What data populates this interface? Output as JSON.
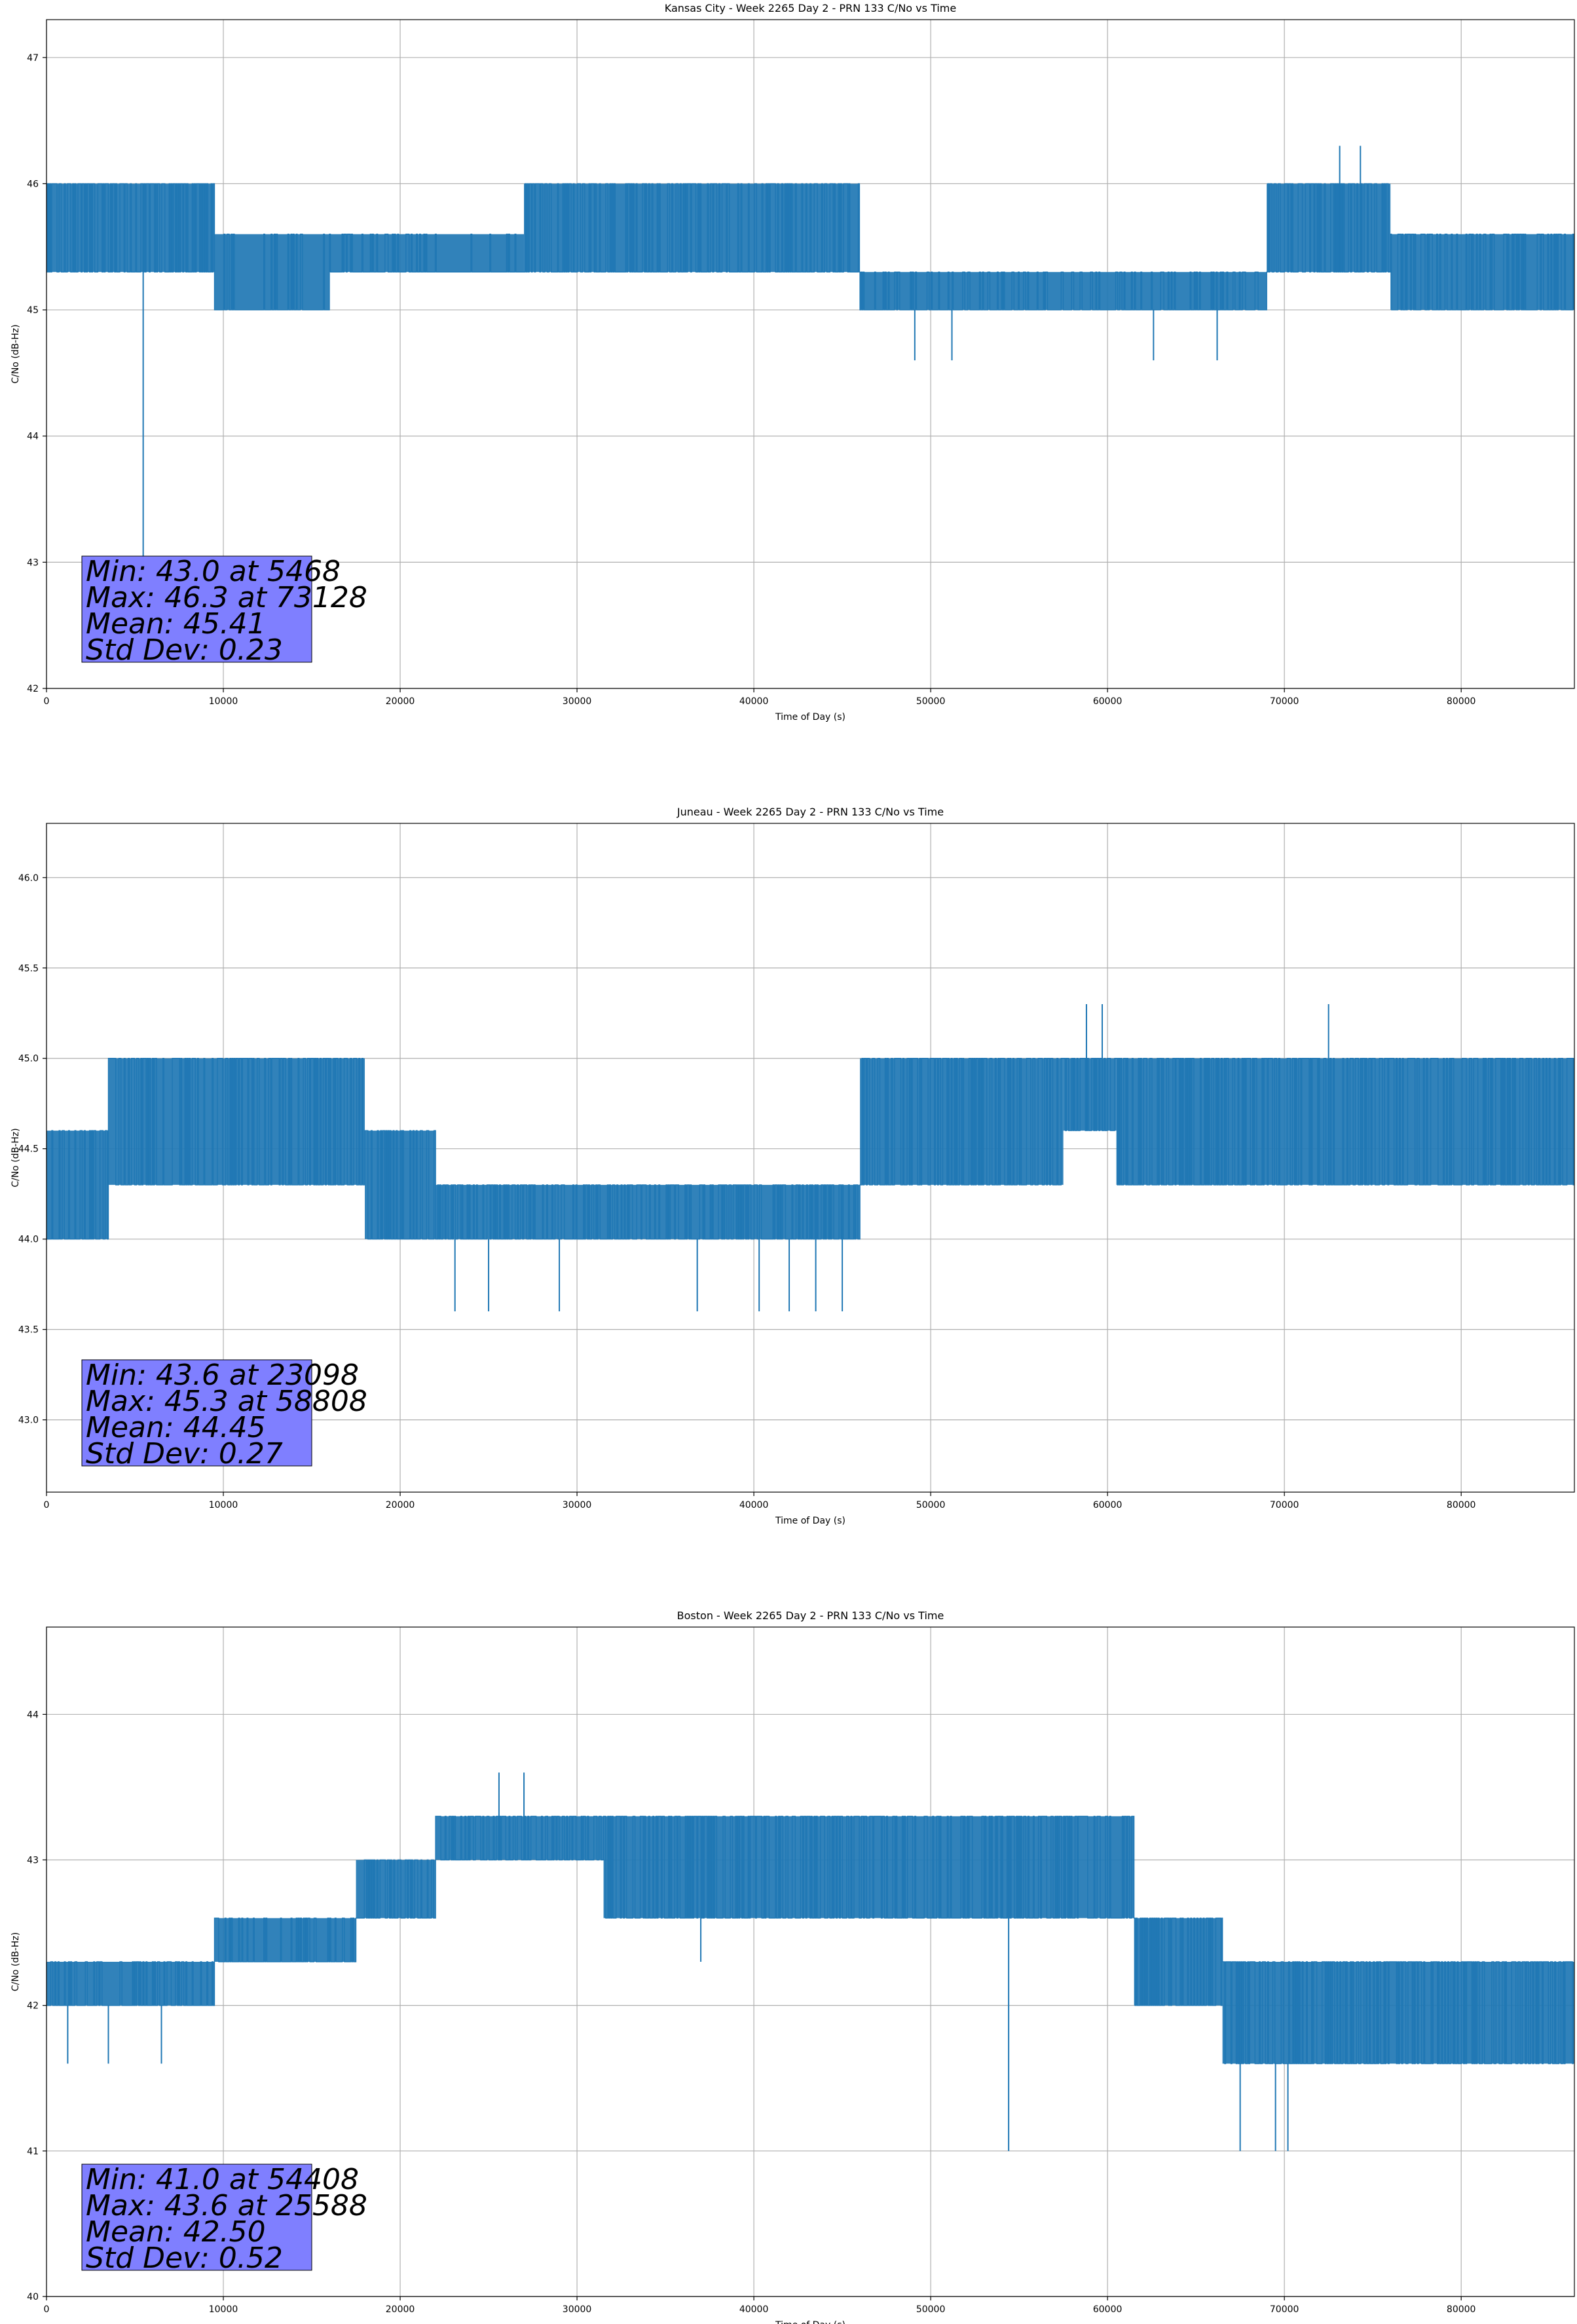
{
  "chart_data": [
    {
      "type": "line",
      "title": "Kansas City - Week 2265 Day 2 - PRN 133 C/No vs Time",
      "xlabel": "Time of Day (s)",
      "ylabel": "C/No (dB-Hz)",
      "xlim": [
        0,
        86400
      ],
      "ylim": [
        42,
        47.3
      ],
      "xticks": [
        0,
        10000,
        20000,
        30000,
        40000,
        50000,
        60000,
        70000,
        80000
      ],
      "yticks": [
        42,
        43,
        44,
        45,
        46,
        47
      ],
      "ytick_labels": [
        "42",
        "43",
        "44",
        "45",
        "46",
        "47"
      ],
      "grid": true,
      "color": "#1f77b4",
      "stats": [
        "Min: 43.0 at 5468",
        "Max: 46.3 at 73128",
        "Mean: 45.41",
        "Std Dev: 0.23"
      ],
      "segments": [
        {
          "x0": 0,
          "x1": 9500,
          "low": 45.3,
          "high": 46.0,
          "dense": 0.55
        },
        {
          "x0": 9500,
          "x1": 16000,
          "low": 45.0,
          "high": 45.6,
          "dense": 0.15
        },
        {
          "x0": 16000,
          "x1": 27000,
          "low": 45.3,
          "high": 45.6,
          "dense": 0.15
        },
        {
          "x0": 27000,
          "x1": 46000,
          "low": 45.3,
          "high": 46.0,
          "dense": 0.4
        },
        {
          "x0": 46000,
          "x1": 69000,
          "low": 45.0,
          "high": 45.3,
          "dense": 0.2
        },
        {
          "x0": 69000,
          "x1": 76000,
          "low": 45.3,
          "high": 46.0,
          "dense": 0.45
        },
        {
          "x0": 76000,
          "x1": 86400,
          "low": 45.0,
          "high": 45.6,
          "dense": 0.35
        }
      ],
      "spikes": [
        {
          "x": 5468,
          "y": 43.0
        },
        {
          "x": 49100,
          "y": 44.6
        },
        {
          "x": 51200,
          "y": 44.6
        },
        {
          "x": 62600,
          "y": 44.6
        },
        {
          "x": 66200,
          "y": 44.6
        },
        {
          "x": 73128,
          "y": 46.3
        },
        {
          "x": 74300,
          "y": 46.3
        }
      ]
    },
    {
      "type": "line",
      "title": "Juneau - Week 2265 Day 2 - PRN 133 C/No vs Time",
      "xlabel": "Time of Day (s)",
      "ylabel": "C/No (dB-Hz)",
      "xlim": [
        0,
        86400
      ],
      "ylim": [
        42.6,
        46.3
      ],
      "xticks": [
        0,
        10000,
        20000,
        30000,
        40000,
        50000,
        60000,
        70000,
        80000
      ],
      "yticks": [
        43.0,
        43.5,
        44.0,
        44.5,
        45.0,
        45.5,
        46.0
      ],
      "ytick_labels": [
        "43.0",
        "43.5",
        "44.0",
        "44.5",
        "45.0",
        "45.5",
        "46.0"
      ],
      "grid": true,
      "color": "#1f77b4",
      "stats": [
        "Min: 43.6 at 23098",
        "Max: 45.3 at 58808",
        "Mean: 44.45",
        "Std Dev: 0.27"
      ],
      "segments": [
        {
          "x0": 0,
          "x1": 3500,
          "low": 44.0,
          "high": 44.6,
          "dense": 0.3
        },
        {
          "x0": 3500,
          "x1": 18000,
          "low": 44.3,
          "high": 45.0,
          "dense": 0.5
        },
        {
          "x0": 18000,
          "x1": 22000,
          "low": 44.0,
          "high": 44.6,
          "dense": 0.4
        },
        {
          "x0": 22000,
          "x1": 46000,
          "low": 44.0,
          "high": 44.3,
          "dense": 0.4
        },
        {
          "x0": 46000,
          "x1": 57500,
          "low": 44.3,
          "high": 45.0,
          "dense": 0.45
        },
        {
          "x0": 57500,
          "x1": 60500,
          "low": 44.6,
          "high": 45.0,
          "dense": 0.5
        },
        {
          "x0": 60500,
          "x1": 86400,
          "low": 44.3,
          "high": 45.0,
          "dense": 0.5
        }
      ],
      "spikes": [
        {
          "x": 23098,
          "y": 43.6
        },
        {
          "x": 25000,
          "y": 43.6
        },
        {
          "x": 29000,
          "y": 43.6
        },
        {
          "x": 36800,
          "y": 43.6
        },
        {
          "x": 40300,
          "y": 43.6
        },
        {
          "x": 42000,
          "y": 43.6
        },
        {
          "x": 43500,
          "y": 43.6
        },
        {
          "x": 45000,
          "y": 43.6
        },
        {
          "x": 58808,
          "y": 45.3
        },
        {
          "x": 59700,
          "y": 45.3
        },
        {
          "x": 72500,
          "y": 45.3
        }
      ]
    },
    {
      "type": "line",
      "title": "Boston - Week 2265 Day 2 - PRN 133 C/No vs Time",
      "xlabel": "Time of Day (s)",
      "ylabel": "C/No (dB-Hz)",
      "xlim": [
        0,
        86400
      ],
      "ylim": [
        40,
        44.6
      ],
      "xticks": [
        0,
        10000,
        20000,
        30000,
        40000,
        50000,
        60000,
        70000,
        80000
      ],
      "yticks": [
        40,
        41,
        42,
        43,
        44
      ],
      "ytick_labels": [
        "40",
        "41",
        "42",
        "43",
        "44"
      ],
      "grid": true,
      "color": "#1f77b4",
      "stats": [
        "Min: 41.0 at 54408",
        "Max: 43.6 at 25588",
        "Mean: 42.50",
        "Std Dev: 0.52"
      ],
      "segments": [
        {
          "x0": 0,
          "x1": 9500,
          "low": 42.0,
          "high": 42.3,
          "dense": 0.3
        },
        {
          "x0": 9500,
          "x1": 17500,
          "low": 42.3,
          "high": 42.6,
          "dense": 0.3
        },
        {
          "x0": 17500,
          "x1": 22000,
          "low": 42.6,
          "high": 43.0,
          "dense": 0.4
        },
        {
          "x0": 22000,
          "x1": 31500,
          "low": 43.0,
          "high": 43.3,
          "dense": 0.4
        },
        {
          "x0": 31500,
          "x1": 61500,
          "low": 42.6,
          "high": 43.3,
          "dense": 0.45
        },
        {
          "x0": 61500,
          "x1": 66500,
          "low": 42.0,
          "high": 42.6,
          "dense": 0.45
        },
        {
          "x0": 66500,
          "x1": 86400,
          "low": 41.6,
          "high": 42.3,
          "dense": 0.5
        }
      ],
      "spikes": [
        {
          "x": 1200,
          "y": 41.6
        },
        {
          "x": 3500,
          "y": 41.6
        },
        {
          "x": 6500,
          "y": 41.6
        },
        {
          "x": 25588,
          "y": 43.6
        },
        {
          "x": 27000,
          "y": 43.6
        },
        {
          "x": 37000,
          "y": 42.3
        },
        {
          "x": 54408,
          "y": 41.0
        },
        {
          "x": 67500,
          "y": 41.0
        },
        {
          "x": 69500,
          "y": 41.0
        },
        {
          "x": 70200,
          "y": 41.0
        }
      ]
    }
  ]
}
